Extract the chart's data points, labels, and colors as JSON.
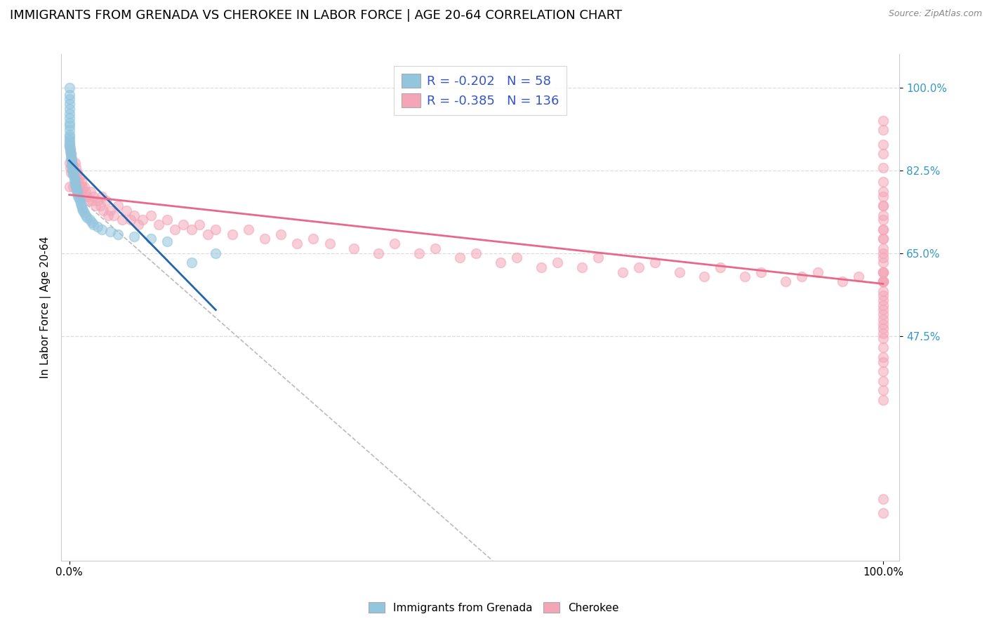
{
  "title": "IMMIGRANTS FROM GRENADA VS CHEROKEE IN LABOR FORCE | AGE 20-64 CORRELATION CHART",
  "source": "Source: ZipAtlas.com",
  "ylabel": "In Labor Force | Age 20-64",
  "grenada_color": "#92c5de",
  "grenada_edge": "#92c5de",
  "cherokee_color": "#f4a6b8",
  "cherokee_edge": "#f4a6b8",
  "trendline_grenada_color": "#2166ac",
  "trendline_cherokee_color": "#e8688a",
  "dashed_line_color": "#bbbbbb",
  "background_color": "#ffffff",
  "grid_color": "#dddddd",
  "legend_R_grenada": "-0.202",
  "legend_N_grenada": "58",
  "legend_R_cherokee": "-0.385",
  "legend_N_cherokee": "136",
  "R_color": "#3355cc",
  "N_color": "#3399ff",
  "title_fontsize": 13,
  "axis_label_fontsize": 11,
  "tick_fontsize": 11,
  "marker_size": 10,
  "alpha_scatter": 0.55,
  "ytick_positions": [
    0.475,
    0.65,
    0.825,
    1.0
  ],
  "ytick_labels": [
    "47.5%",
    "65.0%",
    "82.5%",
    "100.0%"
  ],
  "xtick_positions": [
    0.0,
    1.0
  ],
  "xtick_labels": [
    "0.0%",
    "100.0%"
  ],
  "xlim": [
    -0.01,
    1.02
  ],
  "ylim": [
    0.0,
    1.07
  ],
  "grenada_x": [
    0.0,
    0.0,
    0.0,
    0.0,
    0.0,
    0.0,
    0.0,
    0.0,
    0.0,
    0.0,
    0.0,
    0.0,
    0.0,
    0.0,
    0.0,
    0.0,
    0.001,
    0.001,
    0.002,
    0.002,
    0.002,
    0.003,
    0.003,
    0.003,
    0.004,
    0.004,
    0.005,
    0.005,
    0.006,
    0.006,
    0.007,
    0.007,
    0.008,
    0.009,
    0.01,
    0.01,
    0.011,
    0.012,
    0.013,
    0.014,
    0.015,
    0.016,
    0.017,
    0.018,
    0.02,
    0.022,
    0.025,
    0.028,
    0.03,
    0.035,
    0.04,
    0.05,
    0.06,
    0.08,
    0.1,
    0.12,
    0.15,
    0.18
  ],
  "grenada_y": [
    1.0,
    0.985,
    0.975,
    0.965,
    0.955,
    0.945,
    0.935,
    0.925,
    0.92,
    0.91,
    0.9,
    0.895,
    0.89,
    0.885,
    0.88,
    0.875,
    0.87,
    0.865,
    0.86,
    0.855,
    0.85,
    0.845,
    0.84,
    0.835,
    0.83,
    0.825,
    0.82,
    0.815,
    0.81,
    0.805,
    0.8,
    0.795,
    0.79,
    0.785,
    0.78,
    0.775,
    0.77,
    0.765,
    0.76,
    0.755,
    0.75,
    0.745,
    0.74,
    0.735,
    0.73,
    0.725,
    0.72,
    0.715,
    0.71,
    0.705,
    0.7,
    0.695,
    0.69,
    0.685,
    0.68,
    0.675,
    0.63,
    0.65
  ],
  "cherokee_x": [
    0.0,
    0.0,
    0.0,
    0.001,
    0.001,
    0.002,
    0.002,
    0.003,
    0.004,
    0.005,
    0.005,
    0.006,
    0.007,
    0.008,
    0.008,
    0.009,
    0.01,
    0.011,
    0.012,
    0.013,
    0.014,
    0.015,
    0.016,
    0.017,
    0.018,
    0.02,
    0.022,
    0.024,
    0.026,
    0.028,
    0.03,
    0.032,
    0.035,
    0.038,
    0.04,
    0.042,
    0.045,
    0.048,
    0.05,
    0.055,
    0.06,
    0.065,
    0.07,
    0.075,
    0.08,
    0.085,
    0.09,
    0.1,
    0.11,
    0.12,
    0.13,
    0.14,
    0.15,
    0.16,
    0.17,
    0.18,
    0.2,
    0.22,
    0.24,
    0.26,
    0.28,
    0.3,
    0.32,
    0.35,
    0.38,
    0.4,
    0.43,
    0.45,
    0.48,
    0.5,
    0.53,
    0.55,
    0.58,
    0.6,
    0.63,
    0.65,
    0.68,
    0.7,
    0.72,
    0.75,
    0.78,
    0.8,
    0.83,
    0.85,
    0.88,
    0.9,
    0.92,
    0.95,
    0.97,
    1.0,
    1.0,
    1.0,
    1.0,
    1.0,
    1.0,
    1.0,
    1.0,
    1.0,
    1.0,
    1.0,
    1.0,
    1.0,
    1.0,
    1.0,
    1.0,
    1.0,
    1.0,
    1.0,
    1.0,
    1.0,
    1.0,
    1.0,
    1.0,
    1.0,
    1.0,
    1.0,
    1.0,
    1.0,
    1.0,
    1.0,
    1.0,
    1.0,
    1.0,
    1.0,
    1.0,
    1.0,
    1.0,
    1.0,
    1.0,
    1.0,
    1.0,
    1.0,
    1.0,
    1.0,
    1.0,
    1.0
  ],
  "cherokee_y": [
    0.88,
    0.84,
    0.79,
    0.87,
    0.83,
    0.86,
    0.82,
    0.85,
    0.84,
    0.83,
    0.79,
    0.82,
    0.84,
    0.83,
    0.79,
    0.81,
    0.82,
    0.8,
    0.81,
    0.79,
    0.78,
    0.8,
    0.79,
    0.77,
    0.79,
    0.78,
    0.77,
    0.76,
    0.78,
    0.76,
    0.77,
    0.75,
    0.76,
    0.75,
    0.77,
    0.74,
    0.76,
    0.73,
    0.74,
    0.73,
    0.75,
    0.72,
    0.74,
    0.72,
    0.73,
    0.71,
    0.72,
    0.73,
    0.71,
    0.72,
    0.7,
    0.71,
    0.7,
    0.71,
    0.69,
    0.7,
    0.69,
    0.7,
    0.68,
    0.69,
    0.67,
    0.68,
    0.67,
    0.66,
    0.65,
    0.67,
    0.65,
    0.66,
    0.64,
    0.65,
    0.63,
    0.64,
    0.62,
    0.63,
    0.62,
    0.64,
    0.61,
    0.62,
    0.63,
    0.61,
    0.6,
    0.62,
    0.6,
    0.61,
    0.59,
    0.6,
    0.61,
    0.59,
    0.6,
    0.59,
    0.93,
    0.91,
    0.88,
    0.86,
    0.83,
    0.8,
    0.78,
    0.75,
    0.73,
    0.7,
    0.68,
    0.66,
    0.64,
    0.61,
    0.59,
    0.77,
    0.75,
    0.72,
    0.7,
    0.68,
    0.65,
    0.63,
    0.61,
    0.59,
    0.56,
    0.54,
    0.52,
    0.5,
    0.48,
    0.45,
    0.43,
    0.42,
    0.4,
    0.38,
    0.36,
    0.34,
    0.1,
    0.13,
    0.47,
    0.49,
    0.51,
    0.53,
    0.55,
    0.57,
    0.59,
    0.61
  ]
}
